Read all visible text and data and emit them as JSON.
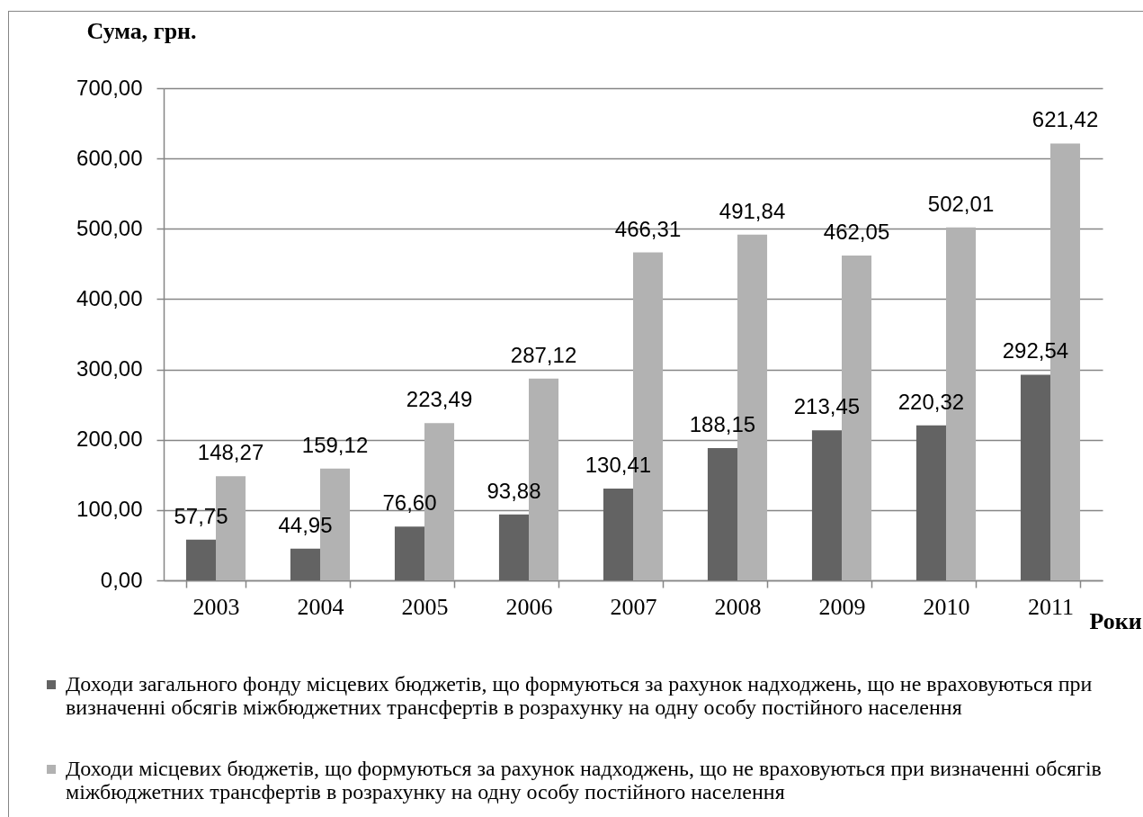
{
  "chart_data": {
    "type": "bar",
    "xlabel": "Роки",
    "ylabel": "Сума, грн.",
    "categories": [
      "2003",
      "2004",
      "2005",
      "2006",
      "2007",
      "2008",
      "2009",
      "2010",
      "2011"
    ],
    "series": [
      {
        "name": "Доходи загального фонду місцевих бюджетів, що формуються за рахунок надходжень, що не враховуються при визначенні обсягів міжбюджетних трансфертів в розрахунку на одну особу постійного населення",
        "color": "#636363",
        "values": [
          57.75,
          44.95,
          76.6,
          93.88,
          130.41,
          188.15,
          213.45,
          220.32,
          292.54
        ],
        "value_labels": [
          "57,75",
          "44,95",
          "76,60",
          "93,88",
          "130,41",
          "188,15",
          "213,45",
          "220,32",
          "292,54"
        ]
      },
      {
        "name": "Доходи місцевих бюджетів, що формуються за рахунок надходжень, що не враховуються при визначенні обсягів міжбюджетних трансфертів в розрахунку на одну особу постійного населення",
        "color": "#b2b2b2",
        "values": [
          148.27,
          159.12,
          223.49,
          287.12,
          466.31,
          491.84,
          462.05,
          502.01,
          621.42
        ],
        "value_labels": [
          "148,27",
          "159,12",
          "223,49",
          "287,12",
          "466,31",
          "491,84",
          "462,05",
          "502,01",
          "621,42"
        ]
      }
    ],
    "ylim": [
      0,
      700
    ],
    "yticks": [
      {
        "value": 0,
        "label": "0,00"
      },
      {
        "value": 100,
        "label": "100,00"
      },
      {
        "value": 200,
        "label": "200,00"
      },
      {
        "value": 300,
        "label": "300,00"
      },
      {
        "value": 400,
        "label": "400,00"
      },
      {
        "value": 500,
        "label": "500,00"
      },
      {
        "value": 600,
        "label": "600,00"
      },
      {
        "value": 700,
        "label": "700,00"
      }
    ],
    "grid": "y",
    "legend": "bottom"
  }
}
